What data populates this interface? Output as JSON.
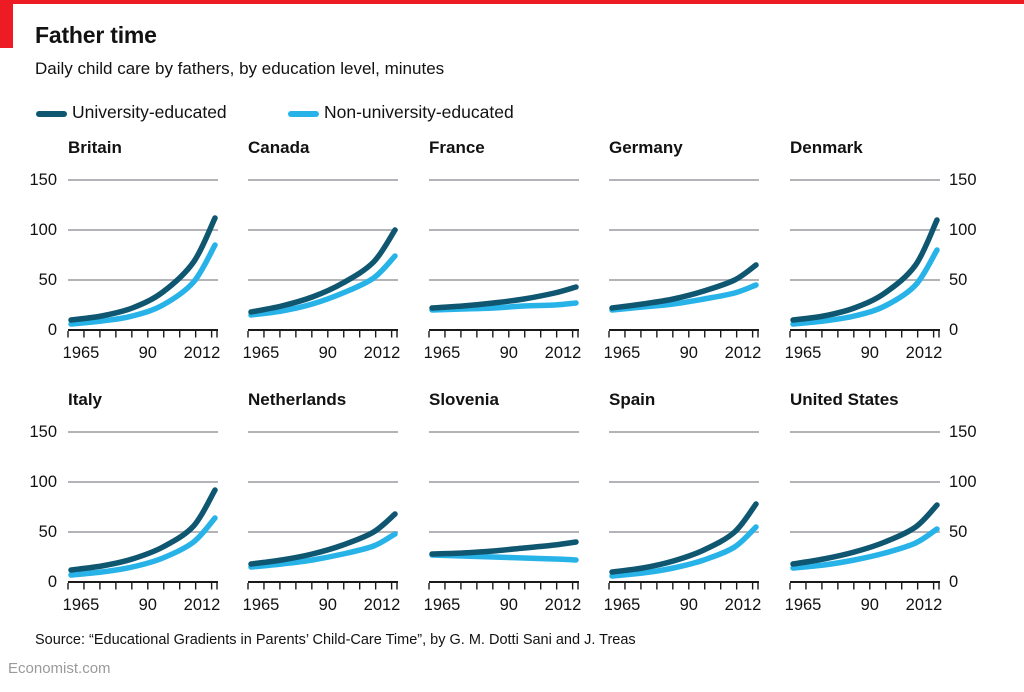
{
  "header": {
    "title": "Father time",
    "subtitle": "Daily child care by fathers, by education level, minutes"
  },
  "legend": [
    {
      "label": "University-educated",
      "color": "#0f5670"
    },
    {
      "label": "Non-university-educated",
      "color": "#28b3e8"
    }
  ],
  "footer": {
    "source": "Source: “Educational Gradients in Parents’ Child-Care Time”, by G. M. Dotti Sani and J. Treas",
    "site": "Economist.com"
  },
  "colors": {
    "accent_red": "#ED1C24",
    "university": "#0f5670",
    "non_university": "#28b3e8",
    "grid": "#b4b4b8",
    "axis": "#1a1a1a",
    "text": "#121212",
    "muted": "#9a9a9a"
  },
  "chart_data": {
    "type": "line",
    "x": [
      1965,
      1975,
      1985,
      1995,
      2005,
      2012
    ],
    "xlim": [
      1965,
      2012
    ],
    "ylim": [
      0,
      150
    ],
    "yticks": [
      0,
      50,
      100,
      150
    ],
    "xticks": [
      1965,
      1970,
      1975,
      1980,
      1985,
      1990,
      1995,
      2000,
      2005,
      2010,
      2012
    ],
    "xtick_labels": [
      {
        "year": 1965,
        "label": "1965"
      },
      {
        "year": 1990,
        "label": "90"
      },
      {
        "year": 2012,
        "label": "2012"
      }
    ],
    "series_names": [
      "University-educated",
      "Non-university-educated"
    ],
    "panels": [
      {
        "title": "Britain",
        "university": [
          10,
          14,
          22,
          38,
          68,
          112
        ],
        "non_university": [
          6,
          9,
          14,
          25,
          48,
          85
        ]
      },
      {
        "title": "Canada",
        "university": [
          18,
          24,
          33,
          47,
          68,
          100
        ],
        "non_university": [
          15,
          19,
          26,
          37,
          52,
          74
        ]
      },
      {
        "title": "France",
        "university": [
          22,
          24,
          27,
          31,
          37,
          43
        ],
        "non_university": [
          20,
          21,
          22,
          24,
          25,
          27
        ]
      },
      {
        "title": "Germany",
        "university": [
          22,
          26,
          31,
          39,
          50,
          65
        ],
        "non_university": [
          20,
          23,
          26,
          31,
          37,
          45
        ]
      },
      {
        "title": "Denmark",
        "university": [
          10,
          14,
          22,
          37,
          65,
          110
        ],
        "non_university": [
          6,
          9,
          14,
          24,
          45,
          80
        ]
      },
      {
        "title": "Italy",
        "university": [
          12,
          16,
          23,
          35,
          56,
          92
        ],
        "non_university": [
          7,
          10,
          15,
          24,
          40,
          64
        ]
      },
      {
        "title": "Netherlands",
        "university": [
          18,
          22,
          28,
          37,
          50,
          68
        ],
        "non_university": [
          15,
          18,
          22,
          28,
          36,
          48
        ]
      },
      {
        "title": "Slovenia",
        "university": [
          28,
          29,
          31,
          34,
          37,
          40
        ],
        "non_university": [
          27,
          26,
          25,
          24,
          23,
          22
        ]
      },
      {
        "title": "Spain",
        "university": [
          10,
          14,
          21,
          32,
          50,
          78
        ],
        "non_university": [
          6,
          9,
          14,
          22,
          35,
          55
        ]
      },
      {
        "title": "United States",
        "university": [
          18,
          23,
          30,
          40,
          55,
          77
        ],
        "non_university": [
          14,
          17,
          22,
          29,
          39,
          53
        ]
      }
    ]
  }
}
